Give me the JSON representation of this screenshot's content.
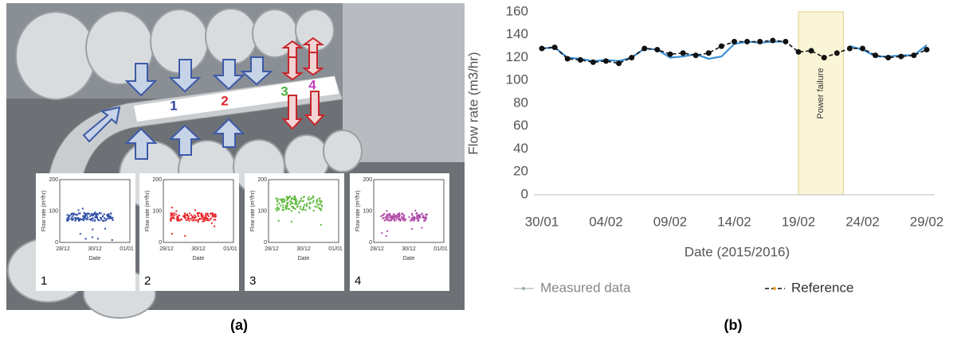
{
  "photo": {
    "labels": [
      "1",
      "2",
      "3",
      "4"
    ],
    "insets": [
      {
        "number": "1",
        "color": "#2f4fa8",
        "yticks": [
          "200",
          "100",
          "0"
        ],
        "xticks": [
          "28/12",
          "30/12",
          "01/01"
        ],
        "xlabel": "Date",
        "ylabel": "Flow rate (m³/hr)"
      },
      {
        "number": "2",
        "color": "#e8262b",
        "yticks": [
          "200",
          "100",
          "0"
        ],
        "xticks": [
          "28/12",
          "30/12",
          "01/01"
        ],
        "xlabel": "Date",
        "ylabel": "Flow rate (m³/hr)"
      },
      {
        "number": "3",
        "color": "#5db83a",
        "yticks": [
          "200",
          "100",
          "0"
        ],
        "xticks": [
          "28/12",
          "30/12",
          "01/01"
        ],
        "xlabel": "Date",
        "ylabel": "Flow rate (m³/hr)"
      },
      {
        "number": "4",
        "color": "#b04aa8",
        "yticks": [
          "200",
          "100",
          "0"
        ],
        "xticks": [
          "28/12",
          "30/12",
          "01/01"
        ],
        "xlabel": "Date",
        "ylabel": "Flow rate (m³/hr)"
      }
    ]
  },
  "captions": [
    "(a)",
    "(b)"
  ],
  "chart_data": [
    {
      "type": "line",
      "xlabel": "Date (2015/2016)",
      "ylabel": "Flow rate (m3/hr)",
      "categories": [
        "30/01",
        null,
        null,
        null,
        null,
        "04/02",
        null,
        null,
        null,
        null,
        "09/02",
        null,
        null,
        null,
        null,
        "14/02",
        null,
        null,
        null,
        null,
        "19/02",
        null,
        null,
        null,
        null,
        "24/02",
        null,
        null,
        null,
        null,
        "29/02"
      ],
      "series": [
        {
          "name": "Measured data",
          "color": "#3a8fd6",
          "values": [
            128,
            129,
            120,
            119,
            117,
            118,
            117,
            120,
            128,
            127,
            120,
            121,
            123,
            119,
            121,
            132,
            134,
            133,
            134,
            134,
            null,
            null,
            null,
            null,
            130,
            127,
            121,
            121,
            122,
            122,
            131
          ]
        },
        {
          "name": "Reference",
          "color": "#111111",
          "values": [
            128,
            129,
            119,
            118,
            116,
            117,
            115,
            120,
            128,
            127,
            123,
            124,
            122,
            124,
            130,
            134,
            134,
            134,
            135,
            134,
            125,
            126,
            120,
            124,
            128,
            128,
            122,
            120,
            121,
            122,
            127
          ]
        }
      ],
      "annotation": {
        "label": "Power failure",
        "start": 20,
        "end": 23.5
      },
      "ylim": [
        0,
        160
      ],
      "yticks": [
        0,
        20,
        40,
        60,
        80,
        100,
        120,
        140,
        160
      ],
      "grid": false,
      "legend": "bottom"
    }
  ]
}
